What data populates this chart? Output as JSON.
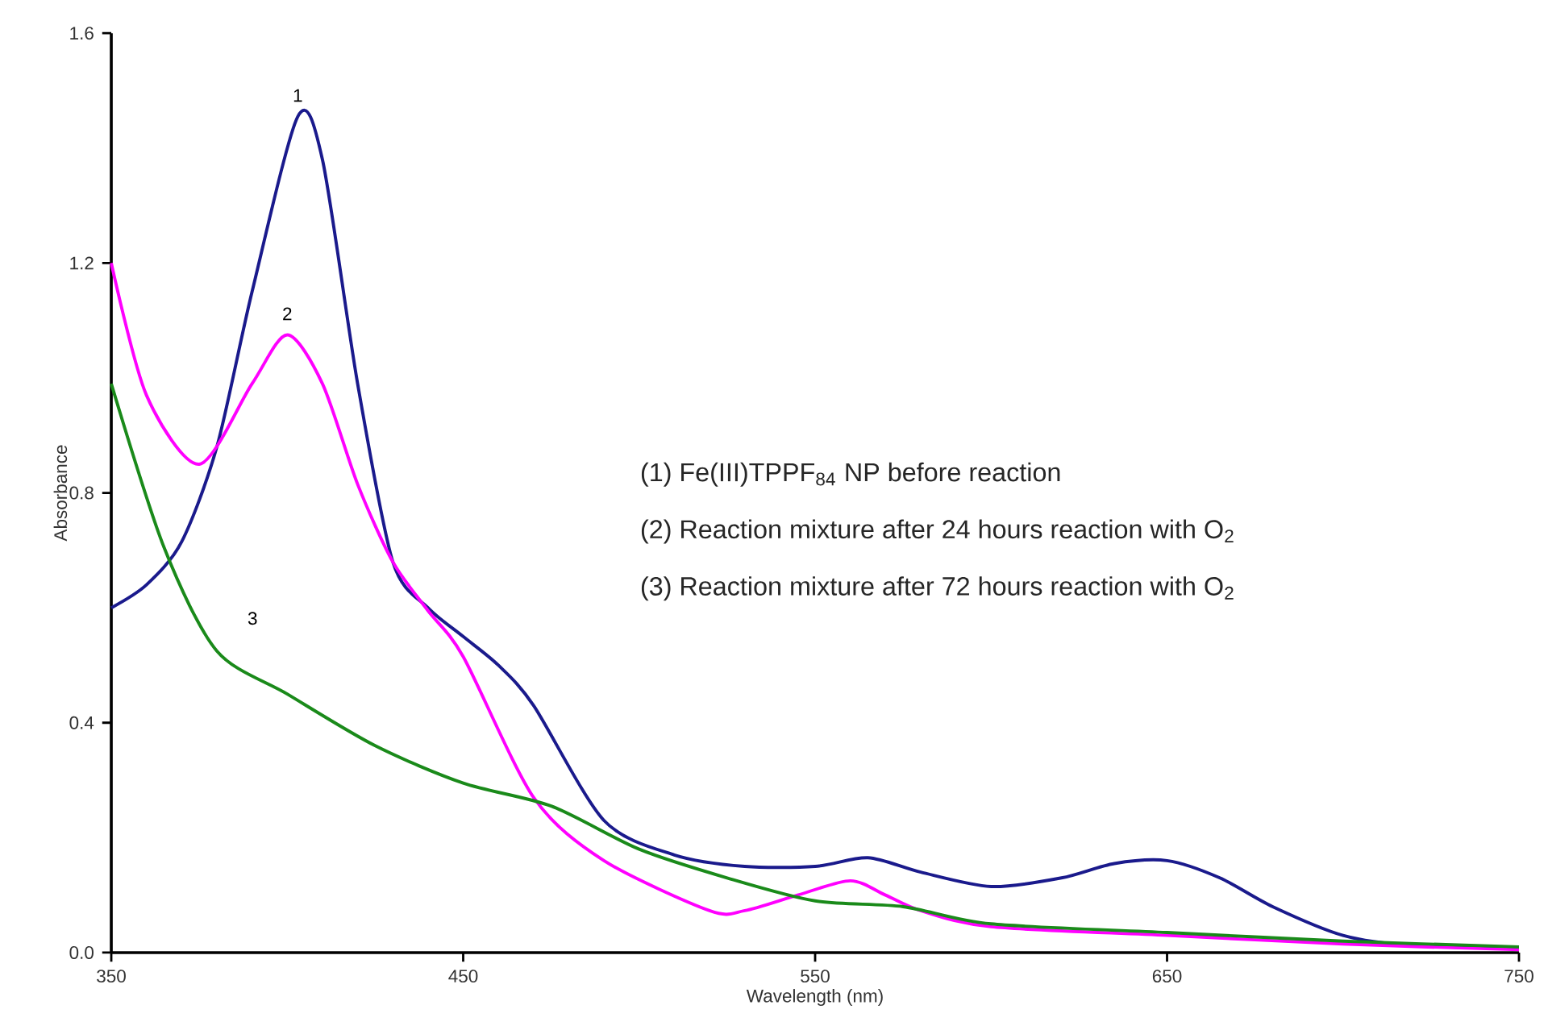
{
  "chart_data": {
    "type": "line",
    "xlabel": "Wavelength (nm)",
    "ylabel": "Absorbance",
    "xlim": [
      350,
      750
    ],
    "xticks": [
      350,
      450,
      550,
      650,
      750
    ],
    "ylim": [
      0,
      1.6
    ],
    "yticks": [
      {
        "value": 0,
        "label": "0.0"
      },
      0.4,
      0.8,
      1.2,
      1.6
    ],
    "series": [
      {
        "name": "1",
        "color": "#1a1a8c",
        "x": [
          350,
          360,
          370,
          380,
          390,
          403,
          410,
          420,
          430,
          440,
          450,
          460,
          470,
          490,
          510,
          530,
          550,
          565,
          580,
          600,
          620,
          635,
          650,
          665,
          680,
          700,
          720,
          750
        ],
        "values": [
          0.6,
          0.64,
          0.715,
          0.88,
          1.15,
          1.455,
          1.38,
          0.99,
          0.68,
          0.6,
          0.55,
          0.5,
          0.43,
          0.23,
          0.17,
          0.15,
          0.15,
          0.165,
          0.14,
          0.115,
          0.13,
          0.155,
          0.16,
          0.13,
          0.08,
          0.03,
          0.012,
          0.008
        ]
      },
      {
        "name": "2",
        "color": "#ff00ff",
        "x": [
          350,
          360,
          375,
          390,
          400,
          410,
          420,
          430,
          440,
          450,
          470,
          490,
          520,
          530,
          545,
          560,
          570,
          580,
          600,
          650,
          700,
          750
        ],
        "values": [
          1.2,
          0.97,
          0.85,
          0.99,
          1.075,
          0.99,
          0.815,
          0.68,
          0.595,
          0.515,
          0.27,
          0.16,
          0.073,
          0.073,
          0.1,
          0.125,
          0.1,
          0.073,
          0.045,
          0.03,
          0.015,
          0.005
        ]
      },
      {
        "name": "3",
        "color": "#1a8a1a",
        "x": [
          350,
          365,
          380,
          400,
          425,
          450,
          475,
          500,
          525,
          550,
          575,
          600,
          650,
          700,
          750
        ],
        "values": [
          0.99,
          0.705,
          0.525,
          0.45,
          0.36,
          0.295,
          0.255,
          0.18,
          0.13,
          0.09,
          0.08,
          0.05,
          0.035,
          0.02,
          0.01
        ]
      }
    ],
    "annotations": [
      "(1) Fe(III)TPPF$_{84}$  NP before reaction",
      "(2) Reaction mixture after 24 hours reaction with O$_{2}$",
      "(3) Reaction mixture after 72 hours reaction with O$_{2}$"
    ]
  }
}
